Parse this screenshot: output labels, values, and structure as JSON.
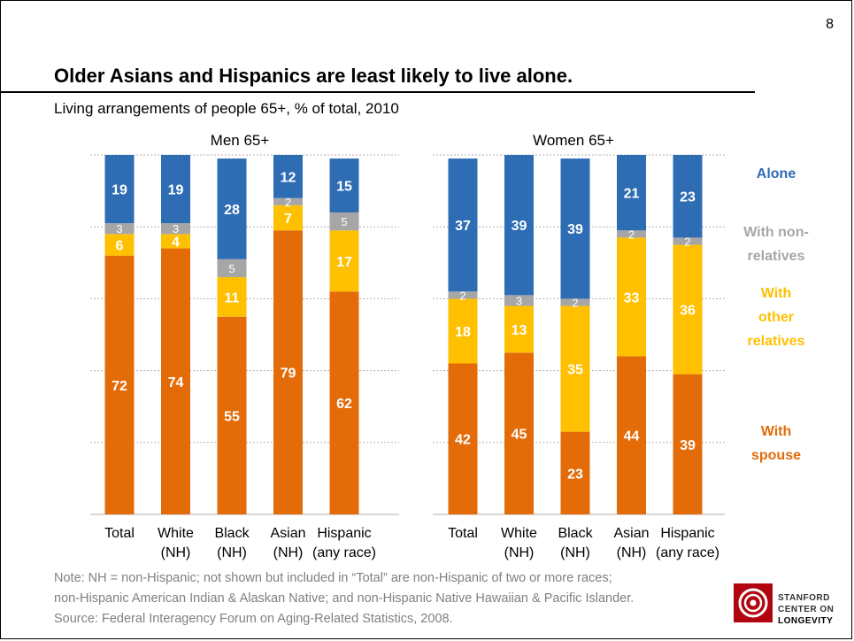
{
  "slide": {
    "page_number": "8",
    "title": "Older Asians and Hispanics are least likely to live alone.",
    "subtitle": "Living arrangements of people 65+, % of total, 2010"
  },
  "colors": {
    "spouse": "#E36C09",
    "other_relatives": "#FFC000",
    "non_relatives": "#A6A6A6",
    "alone": "#2E6DB4",
    "legend_nonrel_text": "#A6A6A6"
  },
  "chart_data": [
    {
      "type": "bar",
      "stacked": true,
      "title": "Men 65+",
      "categories": [
        [
          "Total"
        ],
        [
          "White",
          "(NH)"
        ],
        [
          "Black",
          "(NH)"
        ],
        [
          "Asian",
          "(NH)"
        ],
        [
          "Hispanic",
          "(any race)"
        ]
      ],
      "series": [
        {
          "name": "With spouse",
          "values": [
            72,
            74,
            55,
            79,
            62
          ]
        },
        {
          "name": "With other relatives",
          "values": [
            6,
            4,
            11,
            7,
            17
          ]
        },
        {
          "name": "With non-relatives",
          "values": [
            3,
            3,
            5,
            2,
            5
          ]
        },
        {
          "name": "Alone",
          "values": [
            19,
            19,
            28,
            12,
            15
          ]
        }
      ],
      "ylim": [
        0,
        100
      ],
      "grid": true,
      "legend": "right"
    },
    {
      "type": "bar",
      "stacked": true,
      "title": "Women 65+",
      "categories": [
        [
          "Total"
        ],
        [
          "White",
          "(NH)"
        ],
        [
          "Black",
          "(NH)"
        ],
        [
          "Asian",
          "(NH)"
        ],
        [
          "Hispanic",
          "(any race)"
        ]
      ],
      "series": [
        {
          "name": "With spouse",
          "values": [
            42,
            45,
            23,
            44,
            39
          ]
        },
        {
          "name": "With other relatives",
          "values": [
            18,
            13,
            35,
            33,
            36
          ]
        },
        {
          "name": "With non-relatives",
          "values": [
            2,
            3,
            2,
            2,
            2
          ]
        },
        {
          "name": "Alone",
          "values": [
            37,
            39,
            39,
            21,
            23
          ]
        }
      ],
      "ylim": [
        0,
        100
      ],
      "grid": true,
      "legend": "right"
    }
  ],
  "legend": [
    {
      "key": "alone",
      "lines": [
        "Alone"
      ]
    },
    {
      "key": "non_relatives",
      "lines": [
        "With non-",
        "relatives"
      ]
    },
    {
      "key": "other_relatives",
      "lines": [
        "With",
        "other",
        "relatives"
      ]
    },
    {
      "key": "spouse",
      "lines": [
        "With",
        "spouse"
      ]
    }
  ],
  "note": {
    "line1": "Note: NH = non-Hispanic; not shown but included in “Total” are non-Hispanic of two or more races;",
    "line2": "non-Hispanic American Indian & Alaskan Native; and non-Hispanic Native Hawaiian & Pacific Islander.",
    "line3": "Source: Federal Interagency Forum on Aging-Related Statistics, 2008."
  },
  "logo": {
    "line1": "STANFORD",
    "line2": "CENTER ON",
    "line3": "LONGEVITY",
    "color": "#B1040E"
  }
}
